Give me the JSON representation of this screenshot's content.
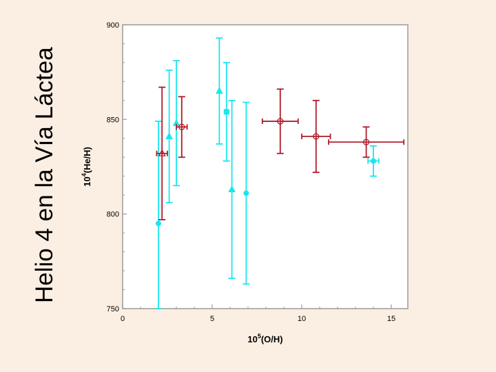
{
  "slide": {
    "title": "Helio 4 en la Vía Láctea"
  },
  "chart_data": {
    "type": "scatter",
    "title": "",
    "xlabel_base": "10",
    "xlabel_exp": "5",
    "xlabel_rest": "(O/H)",
    "ylabel_base": "10",
    "ylabel_exp": "4",
    "ylabel_rest": "(He/H)",
    "xlim": [
      0,
      16
    ],
    "ylim": [
      750,
      900
    ],
    "xticks": [
      0,
      5,
      10,
      15
    ],
    "yticks": [
      750,
      800,
      850,
      900
    ],
    "grid": false,
    "colors": {
      "cyan": "#19e6ee",
      "red": "#b01a2a",
      "frame": "#9a9a9a",
      "background": "#fbeee2",
      "plot_bg": "#ffffff"
    },
    "series": [
      {
        "name": "cyan",
        "color": "#19e6ee",
        "points": [
          {
            "x": 2.0,
            "y": 795,
            "y_low": 750,
            "y_high": 849,
            "x_err": 0,
            "marker": "circle"
          },
          {
            "x": 2.6,
            "y": 841,
            "y_low": 806,
            "y_high": 876,
            "x_err": 0,
            "marker": "triangle"
          },
          {
            "x": 3.0,
            "y": 848,
            "y_low": 815,
            "y_high": 881,
            "x_err": 0,
            "marker": "triangle"
          },
          {
            "x": 5.4,
            "y": 865,
            "y_low": 837,
            "y_high": 893,
            "x_err": 0,
            "marker": "triangle"
          },
          {
            "x": 5.8,
            "y": 854,
            "y_low": 828,
            "y_high": 880,
            "x_err": 0,
            "marker": "square"
          },
          {
            "x": 6.1,
            "y": 813,
            "y_low": 766,
            "y_high": 860,
            "x_err": 0,
            "marker": "triangle"
          },
          {
            "x": 6.9,
            "y": 811,
            "y_low": 763,
            "y_high": 859,
            "x_err": 0,
            "marker": "circle"
          },
          {
            "x": 14.0,
            "y": 828,
            "y_low": 820,
            "y_high": 836,
            "x_err": 0.3,
            "marker": "circle"
          }
        ]
      },
      {
        "name": "red",
        "color": "#b01a2a",
        "points": [
          {
            "x": 2.2,
            "y": 832,
            "y_low": 797,
            "y_high": 867,
            "x_err": 0.3,
            "marker": "triangle-open"
          },
          {
            "x": 3.3,
            "y": 846,
            "y_low": 830,
            "y_high": 862,
            "x_err": 0.3,
            "marker": "circle-open"
          },
          {
            "x": 8.8,
            "y": 849,
            "y_low": 832,
            "y_high": 866,
            "x_err": 1.0,
            "marker": "circle-open"
          },
          {
            "x": 10.8,
            "y": 841,
            "y_low": 822,
            "y_high": 860,
            "x_err": 0.8,
            "marker": "circle-open"
          },
          {
            "x": 13.6,
            "y": 838,
            "y_low": 830,
            "y_high": 846,
            "x_err": 2.1,
            "marker": "circle-open"
          }
        ]
      }
    ]
  }
}
